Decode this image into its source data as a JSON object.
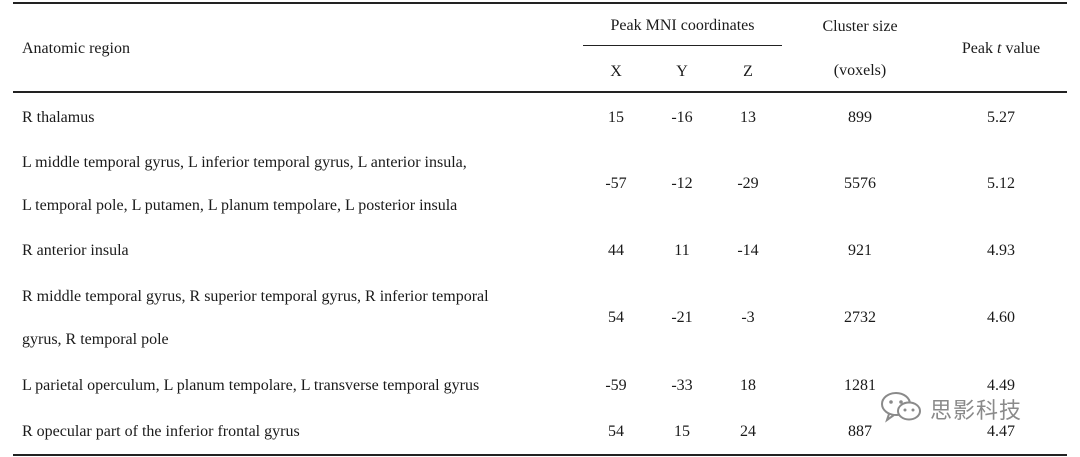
{
  "table": {
    "headers": {
      "region": "Anatomic region",
      "peak_group": "Peak MNI coordinates",
      "x": "X",
      "y": "Y",
      "z": "Z",
      "cluster_line1": "Cluster size",
      "cluster_line2": "(voxels)",
      "peak_t_prefix": "Peak ",
      "peak_t_italic": "t",
      "peak_t_suffix": " value"
    },
    "rows": [
      {
        "region": [
          "R thalamus"
        ],
        "x": "15",
        "y": "-16",
        "z": "13",
        "cluster": "899",
        "t": "5.27"
      },
      {
        "region": [
          "L middle temporal gyrus, L inferior temporal gyrus, L anterior insula,",
          "L temporal pole, L putamen, L planum tempolare, L posterior insula"
        ],
        "x": "-57",
        "y": "-12",
        "z": "-29",
        "cluster": "5576",
        "t": "5.12"
      },
      {
        "region": [
          "R anterior insula"
        ],
        "x": "44",
        "y": "11",
        "z": "-14",
        "cluster": "921",
        "t": "4.93"
      },
      {
        "region": [
          "R middle temporal gyrus, R superior temporal gyrus, R inferior temporal",
          "gyrus, R temporal pole"
        ],
        "x": "54",
        "y": "-21",
        "z": "-3",
        "cluster": "2732",
        "t": "4.60"
      },
      {
        "region": [
          "L parietal operculum, L planum tempolare, L transverse temporal gyrus"
        ],
        "x": "-59",
        "y": "-33",
        "z": "18",
        "cluster": "1281",
        "t": "4.49"
      },
      {
        "region": [
          "R opecular part of the inferior frontal gyrus"
        ],
        "x": "54",
        "y": "15",
        "z": "24",
        "cluster": "887",
        "t": "4.47"
      }
    ]
  },
  "watermark": {
    "icon": "wechat-icon",
    "text": "思影科技"
  }
}
